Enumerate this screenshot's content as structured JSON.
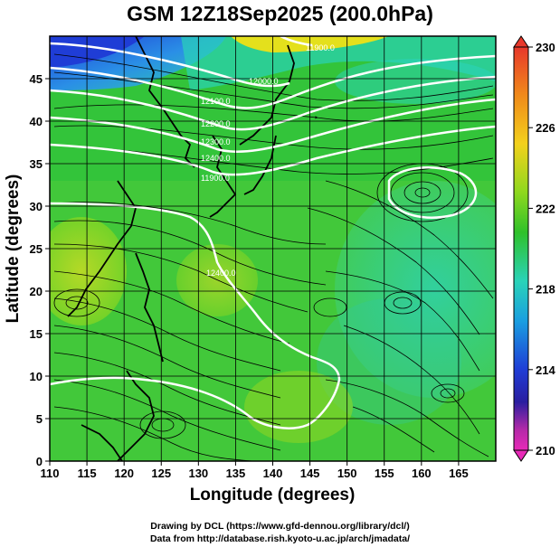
{
  "title": "GSM 12Z18Sep2025 (200.0hPa)",
  "credits": {
    "line1": "Drawing by DCL (https://www.gfd-dennou.org/library/dcl/)",
    "line2": "Data from http://database.rish.kyoto-u.ac.jp/arch/jmadata/"
  },
  "map": {
    "xlabel": "Longitude (degrees)",
    "ylabel": "Latitude  (degrees)",
    "xlim": [
      110,
      170
    ],
    "ylim": [
      0,
      50
    ],
    "x_ticks": [
      "110",
      "115",
      "120",
      "125",
      "130",
      "135",
      "140",
      "145",
      "150",
      "155",
      "160",
      "165"
    ],
    "y_ticks": [
      "0",
      "5",
      "10",
      "15",
      "20",
      "25",
      "30",
      "35",
      "40",
      "45"
    ],
    "grid": true,
    "colorbar": {
      "labels": [
        "230",
        "226",
        "222",
        "218",
        "214",
        "210"
      ],
      "min": 210,
      "max": 230
    },
    "contour_labels": [
      "11900.0",
      "12000.0",
      "12100.0",
      "12200.0",
      "12300.0",
      "12400.0",
      "11900.0",
      "12400.0"
    ]
  }
}
